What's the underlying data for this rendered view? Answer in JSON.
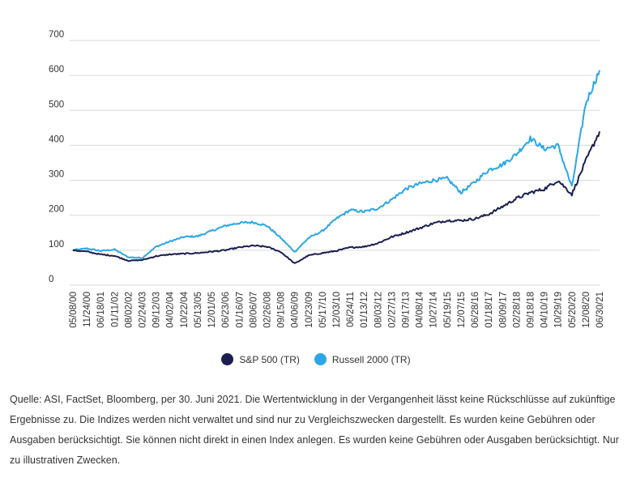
{
  "chart_data": {
    "type": "line",
    "ylim": [
      0,
      700
    ],
    "yticks": [
      0,
      100,
      200,
      300,
      400,
      500,
      600,
      700
    ],
    "x_dates": [
      "05/08/00",
      "11/24/00",
      "06/18/01",
      "01/11/02",
      "08/02/02",
      "02/24/03",
      "09/12/03",
      "04/02/04",
      "10/22/04",
      "05/13/05",
      "12/01/05",
      "06/23/06",
      "01/16/07",
      "08/06/07",
      "02/26/08",
      "09/15/08",
      "04/06/09",
      "10/23/09",
      "05/17/10",
      "12/03/10",
      "06/24/11",
      "01/13/12",
      "08/03/12",
      "02/27/13",
      "09/17/13",
      "04/08/14",
      "10/27/14",
      "05/19/15",
      "12/07/15",
      "06/28/16",
      "01/18/17",
      "08/09/17",
      "02/28/18",
      "09/18/18",
      "04/10/19",
      "10/29/19",
      "05/20/20",
      "12/08/20",
      "06/30/21"
    ],
    "series": [
      {
        "name": "S&P 500 (TR)",
        "color": "#1b1f4e",
        "values": [
          100,
          96,
          88,
          84,
          70,
          72,
          83,
          88,
          90,
          92,
          96,
          100,
          108,
          113,
          110,
          95,
          62,
          85,
          92,
          98,
          108,
          110,
          120,
          138,
          150,
          163,
          177,
          185,
          185,
          190,
          203,
          225,
          248,
          265,
          275,
          300,
          260,
          355,
          440
        ]
      },
      {
        "name": "Russell 2000 (TR)",
        "color": "#2aa7e4",
        "values": [
          100,
          105,
          98,
          102,
          80,
          78,
          110,
          125,
          138,
          140,
          155,
          170,
          178,
          180,
          170,
          135,
          95,
          135,
          155,
          190,
          215,
          210,
          220,
          245,
          275,
          290,
          300,
          305,
          265,
          295,
          330,
          345,
          375,
          420,
          390,
          400,
          280,
          520,
          615
        ]
      }
    ]
  },
  "source_note": "Quelle: ASI, FactSet, Bloomberg, per 30. Juni 2021. Die Wertentwicklung in der Vergangenheit lässt keine Rückschlüsse auf zukünftige Ergebnisse zu. Die Indizes werden nicht verwaltet und sind nur zu Vergleichszwecken dargestellt. Es wurden keine Gebühren oder Ausgaben berücksichtigt. Sie können nicht direkt in einen Index anlegen. Es wurden keine Gebühren oder Ausgaben berücksichtigt. Nur zu illustrativen Zwecken."
}
